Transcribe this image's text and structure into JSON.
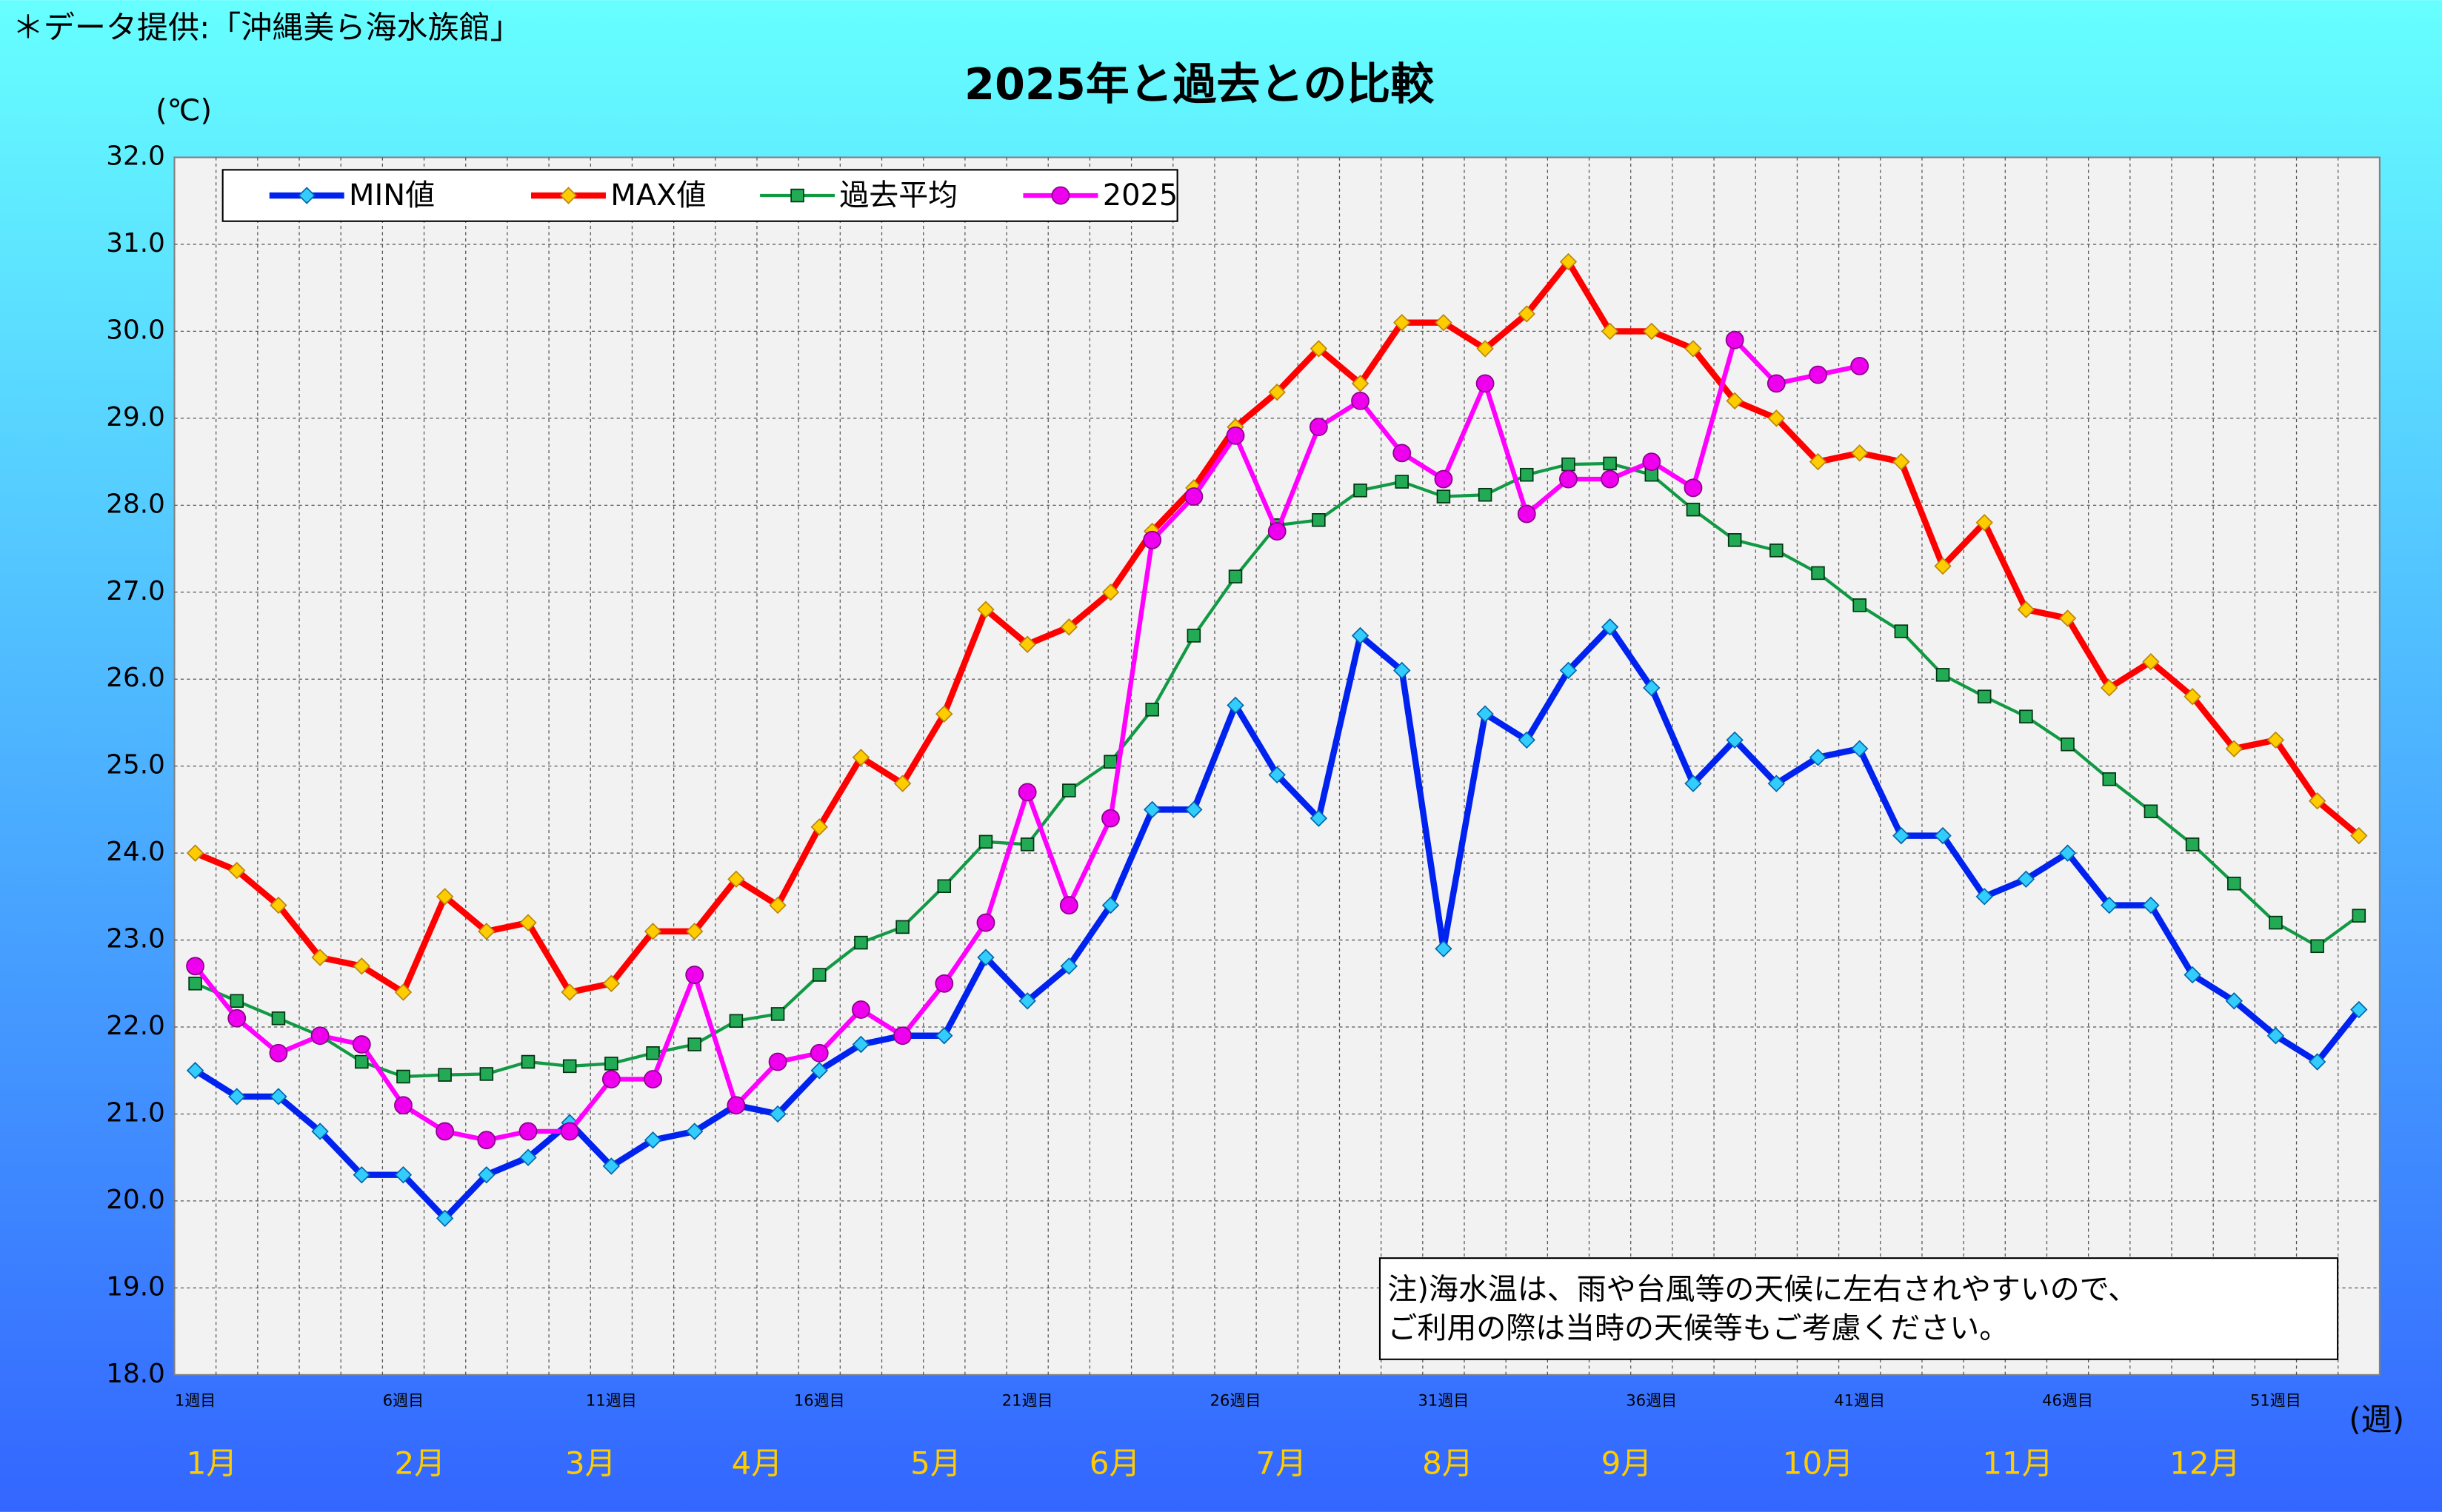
{
  "source": "＊データ提供:「沖縄美ら海水族館」",
  "chart_data": {
    "type": "line",
    "title": "2025年と過去との比較",
    "y_unit": "(℃)",
    "x_unit": "(週)",
    "categories": [
      "1週目",
      null,
      null,
      null,
      null,
      "6週目",
      null,
      null,
      null,
      null,
      "11週目",
      null,
      null,
      null,
      null,
      "16週目",
      null,
      null,
      null,
      null,
      "21週目",
      null,
      null,
      null,
      null,
      "26週目",
      null,
      null,
      null,
      null,
      "31週目",
      null,
      null,
      null,
      null,
      "36週目",
      null,
      null,
      null,
      null,
      "41週目",
      null,
      null,
      null,
      null,
      "46週目",
      null,
      null,
      null,
      null,
      "51週目",
      null,
      null
    ],
    "month_labels": [
      "1月",
      "2月",
      "3月",
      "4月",
      "5月",
      "6月",
      "7月",
      "8月",
      "9月",
      "10月",
      "11月",
      "12月"
    ],
    "ylim": [
      18,
      32
    ],
    "yticks": [
      {
        "value": 18,
        "label": "18.0"
      },
      {
        "value": 19,
        "label": "19.0"
      },
      {
        "value": 20,
        "label": "20.0"
      },
      {
        "value": 21,
        "label": "21.0"
      },
      {
        "value": 22,
        "label": "22.0"
      },
      {
        "value": 23,
        "label": "23.0"
      },
      {
        "value": 24,
        "label": "24.0"
      },
      {
        "value": 25,
        "label": "25.0"
      },
      {
        "value": 26,
        "label": "26.0"
      },
      {
        "value": 27,
        "label": "27.0"
      },
      {
        "value": 28,
        "label": "28.0"
      },
      {
        "value": 29,
        "label": "29.0"
      },
      {
        "value": 30,
        "label": "30.0"
      },
      {
        "value": 31,
        "label": "31.0"
      },
      {
        "value": 32,
        "label": "32.0"
      }
    ],
    "grid": true,
    "legend": "top-left",
    "series": [
      {
        "name": "MIN値",
        "color": "#0022EE",
        "marker_color": "#33CCFF",
        "marker": "diamond",
        "values": [
          21.5,
          21.2,
          21.2,
          20.8,
          20.3,
          20.3,
          19.8,
          20.3,
          20.5,
          20.9,
          20.4,
          20.7,
          20.8,
          21.1,
          21.0,
          21.5,
          21.8,
          21.9,
          21.9,
          22.8,
          22.3,
          22.7,
          23.4,
          24.5,
          24.5,
          25.7,
          24.9,
          24.4,
          26.5,
          26.1,
          22.9,
          25.6,
          25.3,
          26.1,
          26.6,
          25.9,
          24.8,
          25.3,
          24.8,
          25.1,
          25.2,
          24.2,
          24.2,
          23.5,
          23.7,
          24.0,
          23.4,
          23.4,
          22.6,
          22.3,
          21.9,
          21.6,
          22.2
        ]
      },
      {
        "name": "MAX値",
        "color": "#FF0000",
        "marker_color": "#FFCC00",
        "marker": "diamond",
        "values": [
          24.0,
          23.8,
          23.4,
          22.8,
          22.7,
          22.4,
          23.5,
          23.1,
          23.2,
          22.4,
          22.5,
          23.1,
          23.1,
          23.7,
          23.4,
          24.3,
          25.1,
          24.8,
          25.6,
          26.8,
          26.4,
          26.6,
          27.0,
          27.7,
          28.2,
          28.9,
          29.3,
          29.8,
          29.4,
          30.1,
          30.1,
          29.8,
          30.2,
          30.8,
          30.0,
          30.0,
          29.8,
          29.2,
          29.0,
          28.5,
          28.6,
          28.5,
          27.3,
          27.8,
          26.8,
          26.7,
          25.9,
          26.2,
          25.8,
          25.2,
          25.3,
          24.6,
          24.2
        ]
      },
      {
        "name": "過去平均",
        "color": "#119944",
        "marker_color": "#22AA55",
        "marker": "square",
        "values": [
          22.5,
          22.3,
          22.1,
          21.9,
          21.6,
          21.43,
          21.45,
          21.46,
          21.6,
          21.55,
          21.58,
          21.7,
          21.8,
          22.07,
          22.15,
          22.6,
          22.97,
          23.15,
          23.62,
          24.13,
          24.1,
          24.72,
          25.05,
          25.65,
          26.5,
          27.18,
          27.77,
          27.83,
          28.17,
          28.27,
          28.1,
          28.12,
          28.35,
          28.47,
          28.48,
          28.35,
          27.95,
          27.6,
          27.48,
          27.22,
          26.85,
          26.55,
          26.05,
          25.8,
          25.57,
          25.25,
          24.85,
          24.48,
          24.1,
          23.65,
          23.2,
          22.93,
          23.28
        ]
      },
      {
        "name": "2025",
        "color": "#FF00FF",
        "marker_color": "#EE00EE",
        "marker": "circle",
        "values": [
          22.7,
          22.1,
          21.7,
          21.9,
          21.8,
          21.1,
          20.8,
          20.7,
          20.8,
          20.8,
          21.4,
          21.4,
          22.6,
          21.1,
          21.6,
          21.7,
          22.2,
          21.9,
          22.5,
          23.2,
          24.7,
          23.4,
          24.4,
          27.6,
          28.1,
          28.8,
          27.7,
          28.9,
          29.2,
          28.6,
          28.3,
          29.4,
          27.9,
          28.3,
          28.3,
          28.5,
          28.2,
          29.9,
          29.4,
          29.5,
          29.6,
          null,
          null,
          null,
          null,
          null,
          null,
          null,
          null,
          null,
          null,
          null,
          null
        ]
      }
    ],
    "annotation": [
      "注)海水温は、雨や台風等の天候に左右されやすいので、",
      "ご利用の際は当時の天候等もご考慮ください。"
    ]
  }
}
